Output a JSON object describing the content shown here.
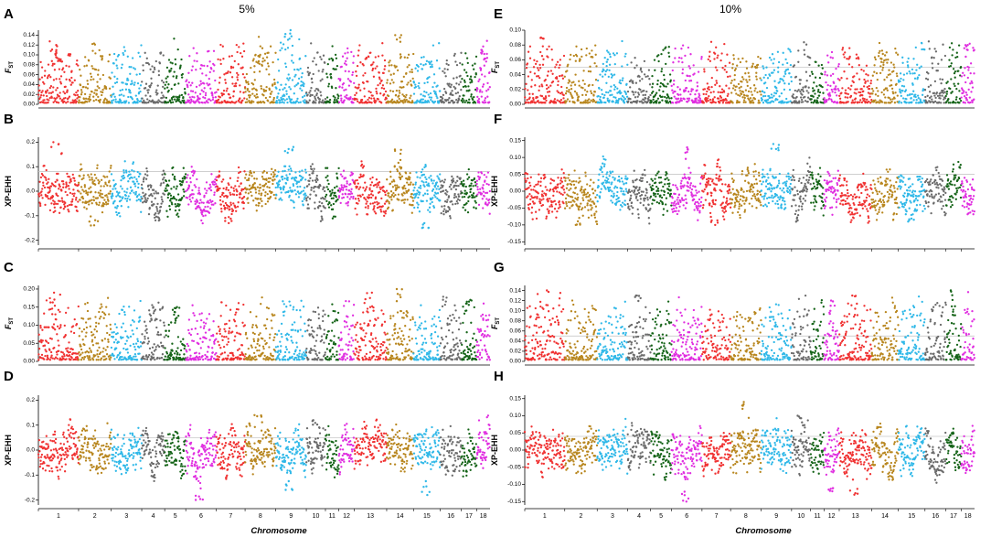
{
  "figure": {
    "columns": [
      {
        "title": "5%",
        "panel_letters": [
          "A",
          "B",
          "C",
          "D"
        ]
      },
      {
        "title": "10%",
        "panel_letters": [
          "E",
          "F",
          "G",
          "H"
        ]
      }
    ],
    "xlabel": "Chromosome"
  },
  "colors": {
    "chromosome_cycle": [
      "#f03232",
      "#b8861e",
      "#2fb8e8",
      "#6b6b6b",
      "#156418",
      "#e02ee0"
    ],
    "threshold_line": "#c8c8c8"
  },
  "chart_data": [
    {
      "id": "A",
      "type": "scatter",
      "stat": "FST",
      "ylabel_main": "F",
      "ylabel_sub": "ST",
      "yticks": [
        "0.00",
        "0.02",
        "0.04",
        "0.06",
        "0.08",
        "0.10",
        "0.12",
        "0.14"
      ],
      "ylim": [
        0,
        0.15
      ],
      "threshold": null,
      "chromosomes": [
        "1",
        "2",
        "3",
        "4",
        "5",
        "6",
        "7",
        "8",
        "9",
        "10",
        "11",
        "12",
        "13",
        "14",
        "15",
        "16",
        "17",
        "18"
      ],
      "peaks": [
        [
          1,
          0.12
        ],
        [
          1,
          0.1
        ],
        [
          8,
          0.1
        ],
        [
          9,
          0.15
        ],
        [
          14,
          0.14
        ],
        [
          18,
          0.11
        ]
      ]
    },
    {
      "id": "B",
      "type": "scatter",
      "stat": "XP-EHH",
      "ylabel_main": "XP-EHH",
      "ylabel_sub": "",
      "yticks": [
        "-0.2",
        "-0.1",
        "0.0",
        "0.1",
        "0.2"
      ],
      "ylim": [
        -0.22,
        0.22
      ],
      "threshold": 0.08,
      "chromosomes": [
        "1",
        "2",
        "3",
        "4",
        "5",
        "6",
        "7",
        "8",
        "9",
        "10",
        "11",
        "12",
        "13",
        "14",
        "15",
        "16",
        "17",
        "18"
      ],
      "peaks": [
        [
          1,
          0.2
        ],
        [
          9,
          0.18
        ],
        [
          14,
          0.17
        ],
        [
          2,
          -0.14
        ],
        [
          7,
          -0.13
        ],
        [
          15,
          -0.15
        ]
      ]
    },
    {
      "id": "C",
      "type": "scatter",
      "stat": "FST",
      "ylabel_main": "F",
      "ylabel_sub": "ST",
      "yticks": [
        "0.00",
        "0.05",
        "0.10",
        "0.15",
        "0.20"
      ],
      "ylim": [
        0,
        0.21
      ],
      "threshold": null,
      "chromosomes": [
        "1",
        "2",
        "3",
        "4",
        "5",
        "6",
        "7",
        "8",
        "9",
        "10",
        "11",
        "12",
        "13",
        "14",
        "15",
        "16",
        "17",
        "18"
      ],
      "peaks": [
        [
          1,
          0.19
        ],
        [
          13,
          0.19
        ],
        [
          14,
          0.2
        ],
        [
          17,
          0.17
        ],
        [
          4,
          0.15
        ],
        [
          5,
          0.15
        ]
      ]
    },
    {
      "id": "D",
      "type": "scatter",
      "stat": "XP-EHH",
      "ylabel_main": "XP-EHH",
      "ylabel_sub": "",
      "yticks": [
        "-0.2",
        "-0.1",
        "0.0",
        "0.1",
        "0.2"
      ],
      "ylim": [
        -0.22,
        0.22
      ],
      "threshold": 0.05,
      "chromosomes": [
        "1",
        "2",
        "3",
        "4",
        "5",
        "6",
        "7",
        "8",
        "9",
        "10",
        "11",
        "12",
        "13",
        "14",
        "15",
        "16",
        "17",
        "18"
      ],
      "peaks": [
        [
          8,
          0.14
        ],
        [
          10,
          0.12
        ],
        [
          6,
          -0.2
        ],
        [
          15,
          -0.18
        ],
        [
          9,
          -0.16
        ]
      ]
    },
    {
      "id": "E",
      "type": "scatter",
      "stat": "FST",
      "ylabel_main": "F",
      "ylabel_sub": "ST",
      "yticks": [
        "0.00",
        "0.02",
        "0.04",
        "0.06",
        "0.08",
        "0.10"
      ],
      "ylim": [
        0,
        0.1
      ],
      "threshold": 0.05,
      "chromosomes": [
        "1",
        "2",
        "3",
        "4",
        "5",
        "6",
        "7",
        "8",
        "9",
        "10",
        "11",
        "12",
        "13",
        "14",
        "15",
        "16",
        "17",
        "18"
      ],
      "peaks": [
        [
          1,
          0.09
        ],
        [
          18,
          0.08
        ],
        [
          14,
          0.07
        ],
        [
          3,
          0.07
        ]
      ]
    },
    {
      "id": "F",
      "type": "scatter",
      "stat": "XP-EHH",
      "ylabel_main": "XP-EHH",
      "ylabel_sub": "",
      "yticks": [
        "-0.15",
        "-0.10",
        "-0.05",
        "0.00",
        "0.05",
        "0.10",
        "0.15"
      ],
      "ylim": [
        -0.16,
        0.16
      ],
      "threshold": 0.05,
      "chromosomes": [
        "1",
        "2",
        "3",
        "4",
        "5",
        "6",
        "7",
        "8",
        "9",
        "10",
        "11",
        "12",
        "13",
        "14",
        "15",
        "16",
        "17",
        "18"
      ],
      "peaks": [
        [
          6,
          0.13
        ],
        [
          9,
          0.14
        ],
        [
          2,
          -0.1
        ],
        [
          7,
          -0.1
        ],
        [
          15,
          -0.09
        ]
      ]
    },
    {
      "id": "G",
      "type": "scatter",
      "stat": "FST",
      "ylabel_main": "F",
      "ylabel_sub": "ST",
      "yticks": [
        "0.00",
        "0.02",
        "0.04",
        "0.06",
        "0.08",
        "0.10",
        "0.12",
        "0.14"
      ],
      "ylim": [
        0,
        0.15
      ],
      "threshold": 0.05,
      "chromosomes": [
        "1",
        "2",
        "3",
        "4",
        "5",
        "6",
        "7",
        "8",
        "9",
        "10",
        "11",
        "12",
        "13",
        "14",
        "15",
        "16",
        "17",
        "18"
      ],
      "peaks": [
        [
          1,
          0.14
        ],
        [
          17,
          0.14
        ],
        [
          4,
          0.13
        ],
        [
          13,
          0.13
        ],
        [
          12,
          0.12
        ]
      ]
    },
    {
      "id": "H",
      "type": "scatter",
      "stat": "XP-EHH",
      "ylabel_main": "XP-EHH",
      "ylabel_sub": "",
      "yticks": [
        "-0.15",
        "-0.10",
        "-0.05",
        "0.00",
        "0.05",
        "0.10",
        "0.15"
      ],
      "ylim": [
        -0.16,
        0.16
      ],
      "threshold": 0.04,
      "chromosomes": [
        "1",
        "2",
        "3",
        "4",
        "5",
        "6",
        "7",
        "8",
        "9",
        "10",
        "11",
        "12",
        "13",
        "14",
        "15",
        "16",
        "17",
        "18"
      ],
      "peaks": [
        [
          8,
          0.14
        ],
        [
          10,
          0.1
        ],
        [
          6,
          -0.15
        ],
        [
          12,
          -0.12
        ],
        [
          13,
          -0.13
        ]
      ]
    }
  ]
}
